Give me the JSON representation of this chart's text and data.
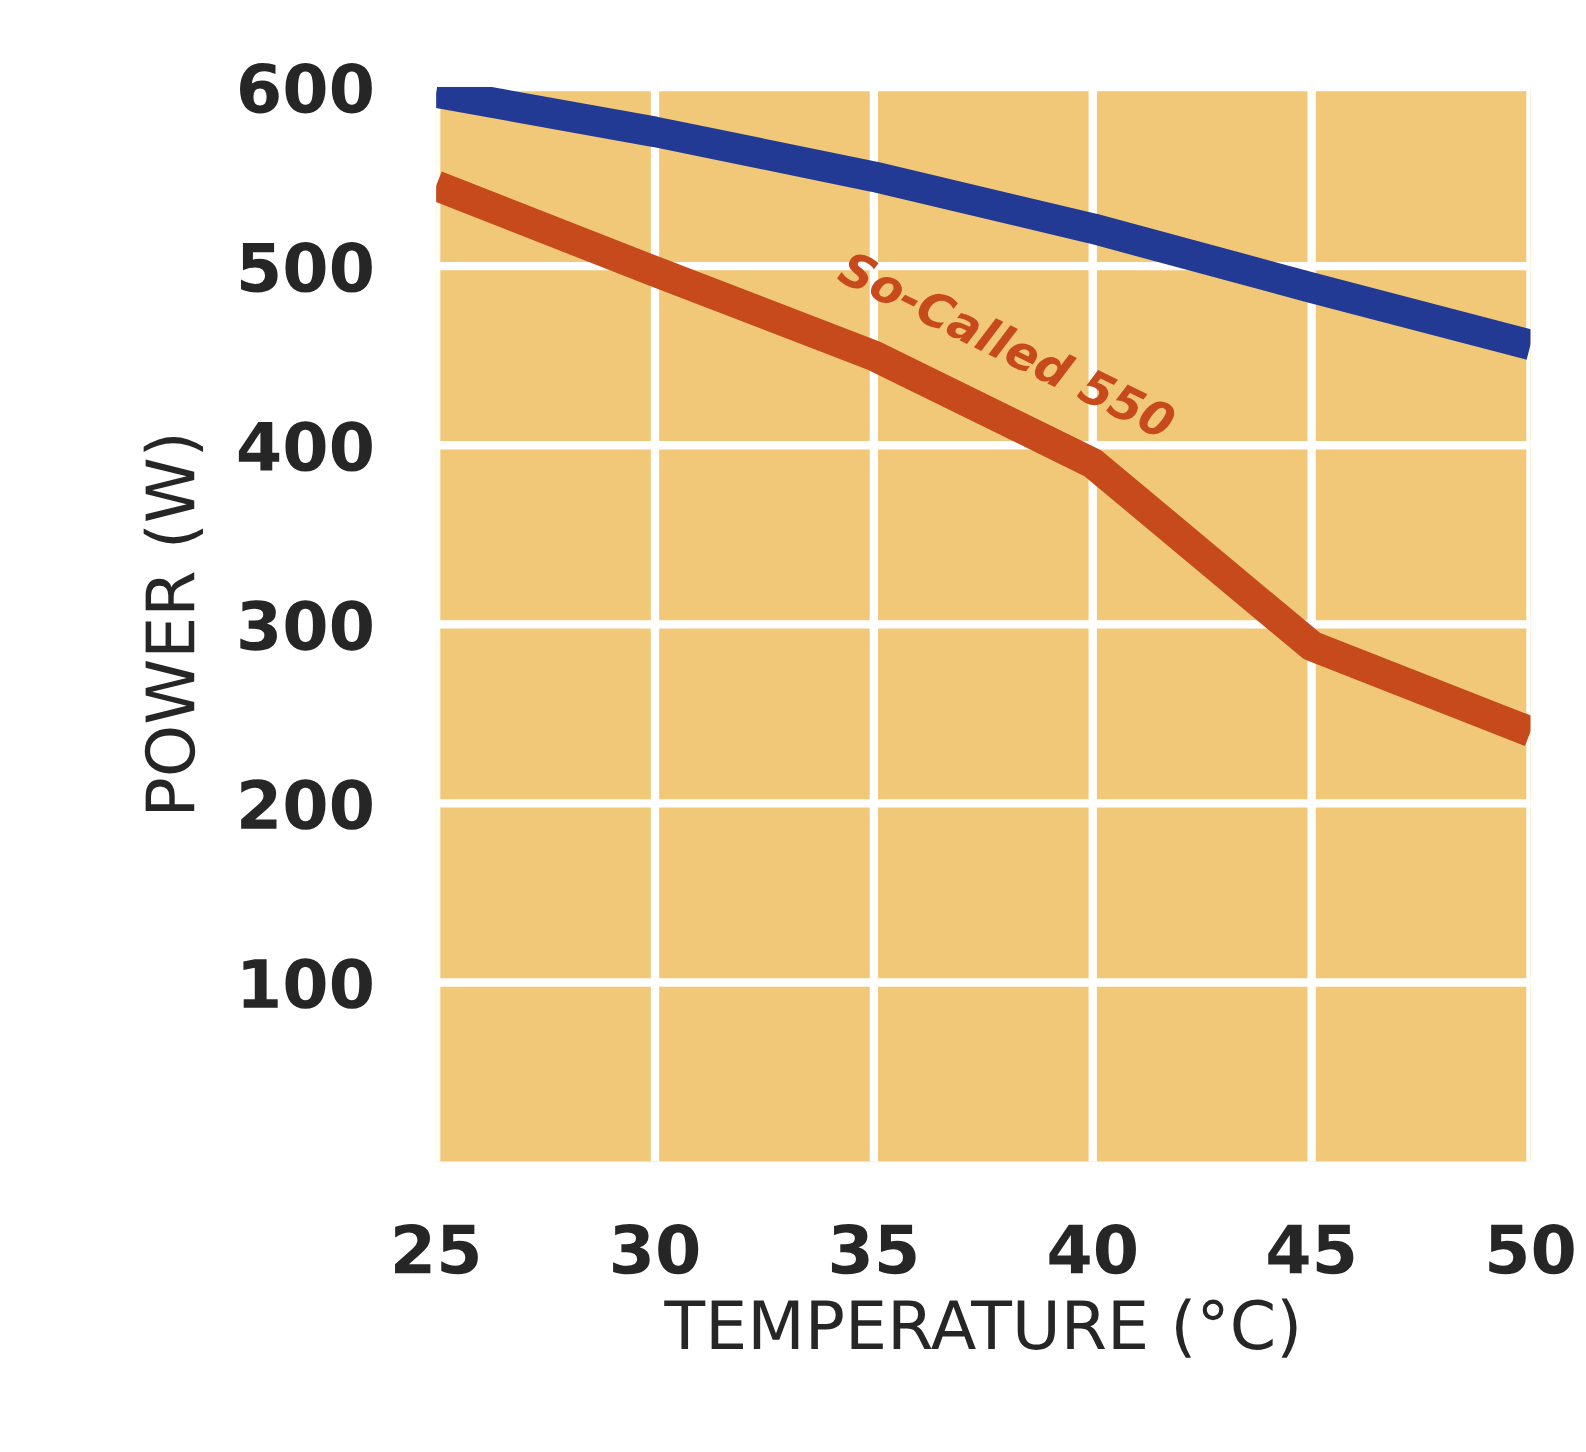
{
  "chart_data": {
    "type": "line",
    "xlabel": "TEMPERATURE (°C)",
    "ylabel": "POWER (W)",
    "x": [
      25,
      30,
      35,
      40,
      45,
      50
    ],
    "series": [
      {
        "color": "#233a94",
        "values": [
          597,
          575,
          550,
          521,
          488,
          456
        ]
      },
      {
        "name": "So-Called 550",
        "color": "#c64a1c",
        "values": [
          545,
          497,
          450,
          390,
          288,
          240
        ]
      }
    ],
    "xlim": [
      25,
      50
    ],
    "ylim": [
      0,
      600
    ],
    "xticks": [
      25,
      30,
      35,
      40,
      45,
      50
    ],
    "yticks": [
      100,
      200,
      300,
      400,
      500,
      600
    ],
    "grid": true,
    "line_style": "solid",
    "marker": "none",
    "legend": false
  }
}
